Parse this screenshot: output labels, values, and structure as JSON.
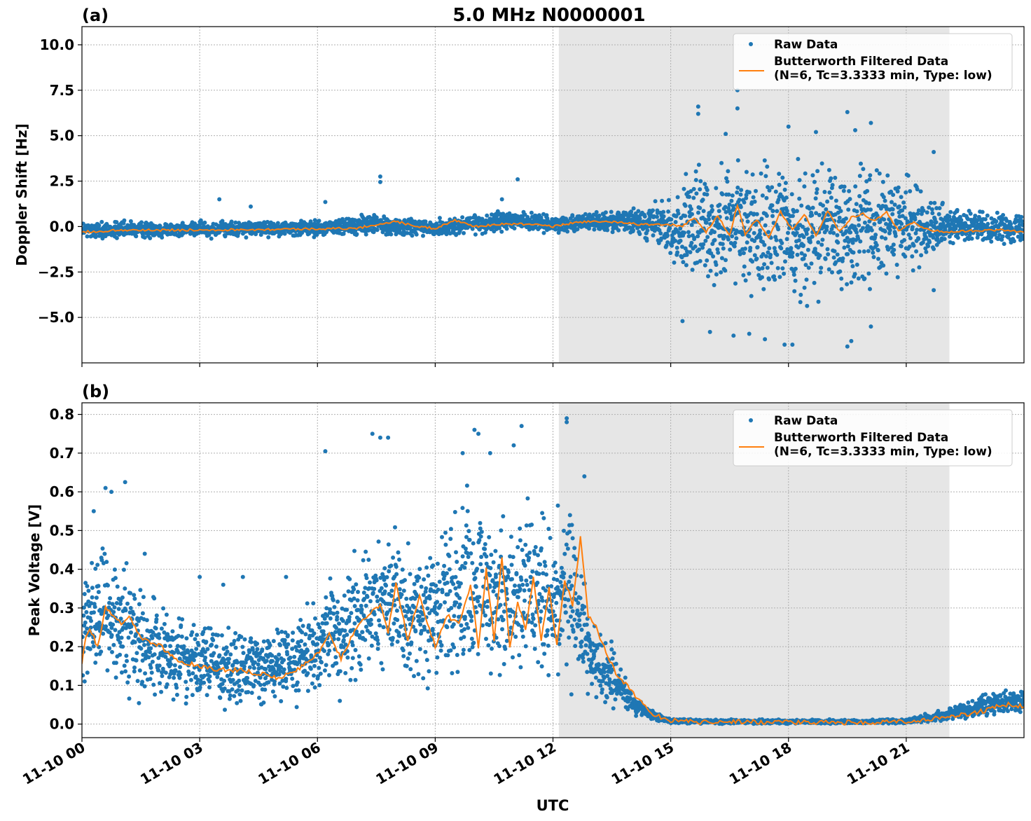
{
  "figure": {
    "title": "5.0 MHz N0000001",
    "xlabel": "UTC"
  },
  "colors": {
    "raw": "#1f77b4",
    "filtered": "#ff7f0e",
    "shade": "#e6e6e6",
    "grid": "#b0b0b0"
  },
  "chart_data": [
    {
      "type": "scatter",
      "panel_label": "(a)",
      "ylabel": "Doppler Shift [Hz]",
      "x_domain": [
        "11-10 00:00",
        "11-11 00:00"
      ],
      "x_unit": "hours UTC on 11-10",
      "xlim": [
        0,
        24
      ],
      "ylim": [
        -7.5,
        11.0
      ],
      "yticks": [
        -5.0,
        -2.5,
        0.0,
        2.5,
        5.0,
        7.5,
        10.0
      ],
      "ytick_labels": [
        "−5.0",
        "−2.5",
        "0.0",
        "2.5",
        "5.0",
        "7.5",
        "10.0"
      ],
      "xticks": [
        0,
        3,
        6,
        9,
        12,
        15,
        18,
        21
      ],
      "xtick_labels": [
        "11-10 00",
        "11-10 03",
        "11-10 06",
        "11-10 09",
        "11-10 12",
        "11-10 15",
        "11-10 18",
        "11-10 21"
      ],
      "grid": true,
      "legend": "top-right",
      "shaded_region": [
        12.15,
        22.1
      ],
      "series": [
        {
          "name": "Raw Data",
          "style": "markers",
          "envelope": {
            "x": [
              0,
              2,
              4,
              6,
              7.5,
              8,
              9,
              10,
              11,
              12,
              13,
              14,
              14.5,
              15,
              15.5,
              16,
              17,
              18,
              19,
              20,
              21,
              21.5,
              22,
              22.5,
              23,
              24
            ],
            "y_low": [
              -0.8,
              -0.7,
              -0.65,
              -0.6,
              -0.6,
              -0.6,
              -0.7,
              -0.5,
              -0.3,
              -0.4,
              -0.3,
              -0.5,
              -1.0,
              -2.5,
              -3.5,
              -4.0,
              -4.5,
              -4.8,
              -4.5,
              -4.0,
              -3.0,
              -2.0,
              -1.2,
              -1.1,
              -1.0,
              -1.1
            ],
            "y_high": [
              0.4,
              0.35,
              0.4,
              0.45,
              0.8,
              0.6,
              0.5,
              0.8,
              1.0,
              0.6,
              0.9,
              1.0,
              1.3,
              2.0,
              3.5,
              4.2,
              4.3,
              4.3,
              4.0,
              4.2,
              3.2,
              2.2,
              1.5,
              1.0,
              0.9,
              0.9
            ]
          },
          "outliers": [
            [
              3.5,
              1.5
            ],
            [
              4.3,
              1.1
            ],
            [
              6.2,
              1.35
            ],
            [
              7.6,
              2.75
            ],
            [
              7.6,
              2.45
            ],
            [
              11.1,
              2.6
            ],
            [
              10.7,
              1.5
            ],
            [
              15.7,
              6.6
            ],
            [
              15.7,
              6.2
            ],
            [
              16.7,
              7.5
            ],
            [
              16.7,
              6.5
            ],
            [
              16.4,
              5.1
            ],
            [
              19.5,
              6.3
            ],
            [
              20.1,
              5.7
            ],
            [
              19.7,
              5.3
            ],
            [
              18.0,
              5.5
            ],
            [
              18.7,
              5.2
            ],
            [
              21.7,
              4.1
            ],
            [
              16.6,
              -6.0
            ],
            [
              17.4,
              -6.2
            ],
            [
              17.9,
              -6.5
            ],
            [
              18.1,
              -6.5
            ],
            [
              19.5,
              -6.6
            ],
            [
              19.6,
              -6.3
            ],
            [
              21.7,
              -3.5
            ],
            [
              15.3,
              -5.2
            ],
            [
              20.1,
              -5.5
            ],
            [
              16.0,
              -5.8
            ],
            [
              17.0,
              -5.9
            ]
          ]
        },
        {
          "name": "Butterworth Filtered Data\n(N=6, Tc=3.3333 min, Type: low)",
          "style": "line",
          "x": [
            0,
            0.5,
            1,
            2,
            3,
            4,
            5,
            6,
            7,
            7.5,
            8,
            8.5,
            9,
            9.5,
            10,
            10.5,
            11,
            11.5,
            12,
            12.5,
            13,
            13.5,
            14,
            14.5,
            15,
            15.3,
            15.6,
            15.9,
            16.2,
            16.5,
            16.7,
            16.9,
            17.2,
            17.5,
            17.8,
            18.1,
            18.4,
            18.7,
            19.0,
            19.3,
            19.6,
            19.9,
            20.2,
            20.5,
            20.8,
            21.2,
            21.6,
            22,
            22.5,
            23,
            23.5,
            24
          ],
          "y": [
            -0.3,
            -0.25,
            -0.2,
            -0.2,
            -0.18,
            -0.17,
            -0.15,
            -0.12,
            -0.1,
            0.1,
            0.3,
            0.0,
            -0.1,
            0.35,
            0.0,
            0.1,
            0.15,
            0.1,
            0.0,
            0.2,
            0.3,
            0.25,
            0.15,
            0.1,
            0.1,
            0.0,
            0.5,
            -0.3,
            0.6,
            -0.5,
            1.2,
            -0.4,
            0.4,
            -0.6,
            0.8,
            -0.2,
            0.7,
            -0.5,
            0.9,
            -0.3,
            0.5,
            0.7,
            0.3,
            0.8,
            -0.2,
            0.2,
            -0.2,
            -0.3,
            -0.25,
            -0.2,
            -0.2,
            -0.3
          ]
        }
      ]
    },
    {
      "type": "scatter",
      "panel_label": "(b)",
      "ylabel": "Peak Voltage [V]",
      "x_domain": [
        "11-10 00:00",
        "11-11 00:00"
      ],
      "x_unit": "hours UTC on 11-10",
      "xlim": [
        0,
        24
      ],
      "ylim": [
        -0.035,
        0.83
      ],
      "yticks": [
        0.0,
        0.1,
        0.2,
        0.3,
        0.4,
        0.5,
        0.6,
        0.7,
        0.8
      ],
      "ytick_labels": [
        "0.0",
        "0.1",
        "0.2",
        "0.3",
        "0.4",
        "0.5",
        "0.6",
        "0.7",
        "0.8"
      ],
      "xticks": [
        0,
        3,
        6,
        9,
        12,
        15,
        18,
        21
      ],
      "xtick_labels": [
        "11-10 00",
        "11-10 03",
        "11-10 06",
        "11-10 09",
        "11-10 12",
        "11-10 15",
        "11-10 18",
        "11-10 21"
      ],
      "grid": true,
      "legend": "top-right",
      "shaded_region": [
        12.15,
        22.1
      ],
      "series": [
        {
          "name": "Raw Data",
          "style": "markers",
          "envelope": {
            "x": [
              0,
              0.5,
              1,
              1.5,
              2,
              3,
              4,
              5,
              6,
              6.5,
              7,
              7.5,
              8,
              8.5,
              9,
              9.5,
              10,
              10.5,
              11,
              11.5,
              12,
              12.5,
              12.8,
              13,
              13.5,
              14,
              14.5,
              15,
              16,
              18,
              20,
              21,
              22,
              22.5,
              23,
              23.5,
              24
            ],
            "y_low": [
              0.05,
              0.06,
              0.05,
              0.04,
              0.04,
              0.04,
              0.03,
              0.03,
              0.04,
              0.05,
              0.07,
              0.08,
              0.08,
              0.07,
              0.06,
              0.06,
              0.07,
              0.07,
              0.08,
              0.08,
              0.07,
              0.06,
              0.05,
              0.05,
              0.03,
              0.02,
              0.01,
              0.0,
              0.0,
              0.0,
              0.0,
              0.0,
              0.005,
              0.01,
              0.015,
              0.02,
              0.02
            ],
            "y_high": [
              0.4,
              0.5,
              0.45,
              0.38,
              0.32,
              0.28,
              0.26,
              0.27,
              0.35,
              0.42,
              0.48,
              0.55,
              0.52,
              0.48,
              0.5,
              0.62,
              0.66,
              0.62,
              0.58,
              0.62,
              0.6,
              0.6,
              0.45,
              0.3,
              0.22,
              0.1,
              0.04,
              0.015,
              0.013,
              0.012,
              0.012,
              0.015,
              0.04,
              0.06,
              0.08,
              0.09,
              0.09
            ]
          },
          "outliers": [
            [
              1.1,
              0.625
            ],
            [
              0.6,
              0.61
            ],
            [
              0.75,
              0.6
            ],
            [
              6.2,
              0.705
            ],
            [
              7.4,
              0.75
            ],
            [
              7.6,
              0.74
            ],
            [
              7.8,
              0.74
            ],
            [
              10.0,
              0.76
            ],
            [
              10.1,
              0.75
            ],
            [
              11.2,
              0.77
            ],
            [
              11.0,
              0.72
            ],
            [
              12.35,
              0.79
            ],
            [
              12.35,
              0.78
            ],
            [
              12.8,
              0.64
            ],
            [
              9.7,
              0.7
            ],
            [
              10.4,
              0.7
            ],
            [
              3.0,
              0.38
            ],
            [
              3.6,
              0.36
            ],
            [
              4.1,
              0.38
            ],
            [
              5.2,
              0.38
            ],
            [
              0.3,
              0.55
            ],
            [
              1.6,
              0.44
            ]
          ]
        },
        {
          "name": "Butterworth Filtered Data\n(N=6, Tc=3.3333 min, Type: low)",
          "style": "line",
          "x": [
            0,
            0.1,
            0.2,
            0.4,
            0.6,
            0.8,
            1.0,
            1.2,
            1.5,
            2,
            2.5,
            3,
            3.5,
            4,
            4.5,
            5,
            5.5,
            6,
            6.3,
            6.6,
            7,
            7.3,
            7.6,
            7.8,
            8.0,
            8.3,
            8.6,
            9.0,
            9.3,
            9.6,
            9.9,
            10.1,
            10.3,
            10.5,
            10.7,
            10.9,
            11.1,
            11.3,
            11.5,
            11.7,
            11.9,
            12.1,
            12.3,
            12.5,
            12.7,
            12.9,
            13.1,
            13.3,
            13.6,
            13.9,
            14.2,
            14.5,
            14.8,
            15,
            15.5,
            16,
            17,
            18,
            19,
            20,
            21,
            21.5,
            22,
            22.5,
            23,
            23.3,
            23.6,
            24
          ],
          "y": [
            0.16,
            0.22,
            0.25,
            0.2,
            0.3,
            0.28,
            0.26,
            0.28,
            0.22,
            0.2,
            0.16,
            0.15,
            0.14,
            0.14,
            0.13,
            0.12,
            0.14,
            0.18,
            0.23,
            0.17,
            0.25,
            0.28,
            0.31,
            0.24,
            0.36,
            0.22,
            0.33,
            0.2,
            0.28,
            0.26,
            0.36,
            0.2,
            0.4,
            0.22,
            0.43,
            0.2,
            0.32,
            0.24,
            0.38,
            0.22,
            0.35,
            0.2,
            0.37,
            0.31,
            0.48,
            0.28,
            0.25,
            0.2,
            0.13,
            0.1,
            0.06,
            0.03,
            0.015,
            0.01,
            0.006,
            0.005,
            0.006,
            0.005,
            0.004,
            0.004,
            0.006,
            0.01,
            0.018,
            0.025,
            0.035,
            0.045,
            0.05,
            0.045
          ]
        }
      ]
    }
  ]
}
